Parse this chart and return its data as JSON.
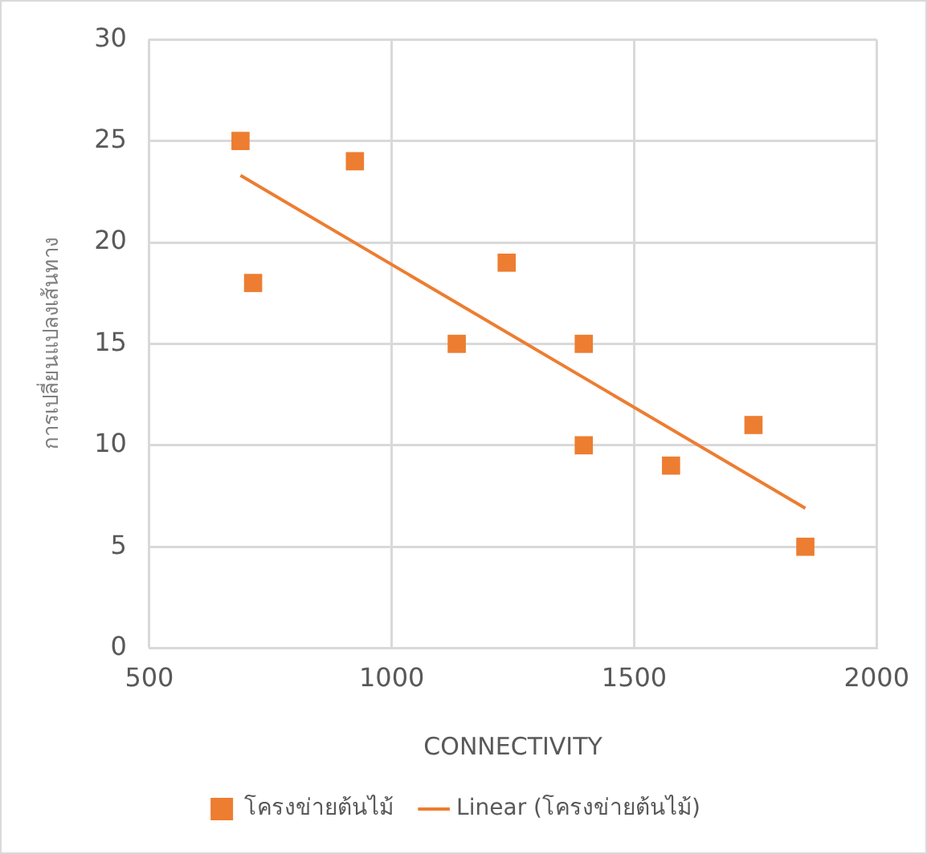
{
  "chart_data": {
    "type": "scatter",
    "xlabel": "CONNECTIVITY",
    "ylabel": "การเปลี่ยนแปลงเส้นทาง",
    "x": [
      688,
      714,
      924,
      1134,
      1237,
      1396,
      1396,
      1576,
      1746,
      1853
    ],
    "series": [
      {
        "name": "โครงข่ายต้นไม้",
        "color": "#ed7d31",
        "marker": "square",
        "values": [
          25,
          18,
          24,
          15,
          19,
          15,
          10,
          9,
          11,
          5
        ]
      },
      {
        "name": "Linear (โครงข่ายต้นไม้)",
        "type": "line",
        "color": "#ed7d31",
        "marker": "none",
        "x": [
          688,
          1853
        ],
        "values": [
          23.3,
          6.9
        ]
      }
    ],
    "xlim": [
      500,
      2000
    ],
    "xticks": [
      500,
      1000,
      1500,
      2000
    ],
    "ylim": [
      0,
      30
    ],
    "yticks": [
      0,
      5,
      10,
      15,
      20,
      25,
      30
    ],
    "grid": true,
    "legend": "bottom"
  }
}
